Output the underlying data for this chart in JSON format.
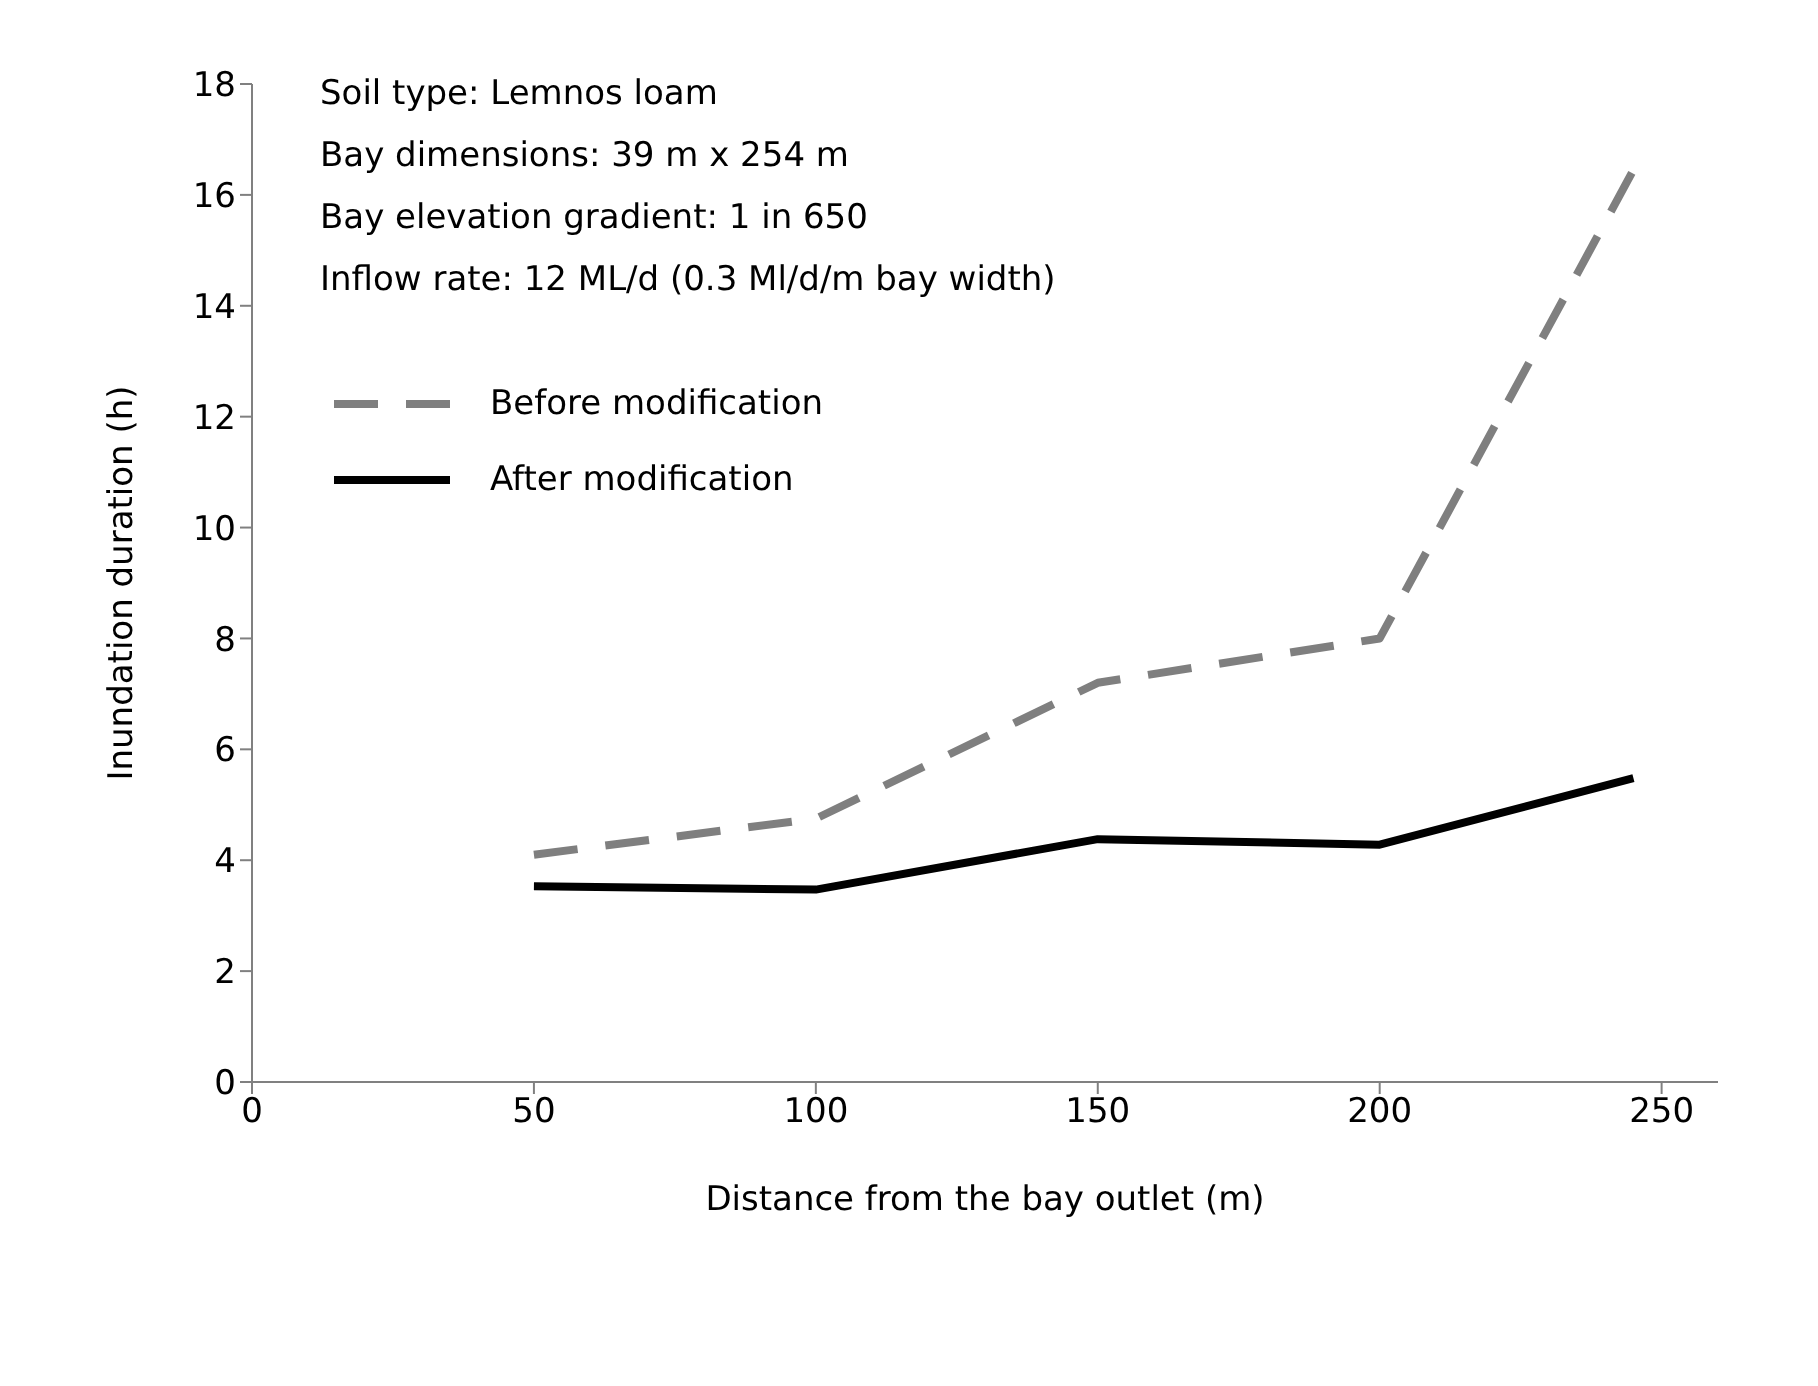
{
  "chart_data": {
    "type": "line",
    "xlabel": "Distance from the bay outlet (m)",
    "ylabel": "Inundation duration (h)",
    "annotations": [
      "Soil type: Lemnos loam",
      "Bay dimensions: 39 m x 254 m",
      "Bay elevation gradient: 1 in 650",
      "Inflow rate: 12 ML/d (0.3 Ml/d/m bay width)"
    ],
    "x": [
      50,
      100,
      150,
      200,
      245
    ],
    "series": [
      {
        "name": "Before modification",
        "color": "#7f7f7f",
        "line_style": "dashed",
        "values": [
          4.1,
          4.75,
          7.2,
          8.0,
          16.45
        ]
      },
      {
        "name": "After modification",
        "color": "#000000",
        "line_style": "solid",
        "values": [
          3.53,
          3.47,
          4.38,
          4.28,
          5.48
        ]
      }
    ],
    "xlim": [
      0,
      260
    ],
    "xticks": [
      0,
      50,
      100,
      150,
      200,
      250
    ],
    "ylim": [
      0,
      18
    ],
    "yticks": [
      0,
      2,
      4,
      6,
      8,
      10,
      12,
      14,
      16,
      18
    ],
    "grid": false,
    "legend": "top left",
    "marker": "none"
  }
}
